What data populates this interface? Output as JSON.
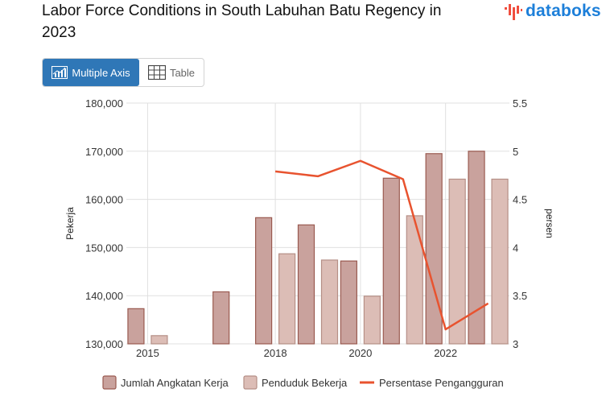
{
  "header": {
    "title": "Labor Force Conditions in South Labuhan Batu Regency in 2023",
    "brand": "databoks"
  },
  "tabs": [
    {
      "label": "Multiple Axis",
      "active": true,
      "icon": "chart-icon"
    },
    {
      "label": "Table",
      "active": false,
      "icon": "table-icon"
    }
  ],
  "colors": {
    "bar1_fill": "#c9a29d",
    "bar1_stroke": "#9a5a50",
    "bar2_fill": "#dcbdb6",
    "bar2_stroke": "#b58f86",
    "line": "#e8532f",
    "tab_active": "#2f77b7",
    "brand": "#1d7fd9"
  },
  "chart_data": {
    "type": "bar",
    "x": [
      2015,
      2016,
      2017,
      2018,
      2019,
      2020,
      2021,
      2022,
      2023
    ],
    "x_tick_labels": [
      "2015",
      "2018",
      "2020",
      "2022"
    ],
    "series": [
      {
        "name": "Jumlah Angkatan Kerja",
        "type": "bar",
        "axis": "left",
        "values": [
          137300,
          null,
          140800,
          156200,
          154700,
          147200,
          164400,
          169500,
          170000
        ]
      },
      {
        "name": "Penduduk Bekerja",
        "type": "bar",
        "axis": "left",
        "values": [
          131700,
          null,
          null,
          148700,
          147400,
          139900,
          156600,
          164200,
          164200
        ]
      },
      {
        "name": "Persentase Pengangguran",
        "type": "line",
        "axis": "right",
        "values": [
          null,
          null,
          null,
          4.79,
          4.74,
          4.9,
          4.71,
          3.15,
          3.42
        ]
      }
    ],
    "y_left": {
      "label": "Pekerja",
      "min": 130000,
      "max": 180000,
      "ticks": [
        "130,000",
        "140,000",
        "150,000",
        "160,000",
        "170,000",
        "180,000"
      ]
    },
    "y_right": {
      "label": "persen",
      "min": 3,
      "max": 5.5,
      "ticks": [
        "3",
        "3.5",
        "4",
        "4.5",
        "5",
        "5.5"
      ]
    },
    "grid": true,
    "legend_position": "bottom"
  }
}
